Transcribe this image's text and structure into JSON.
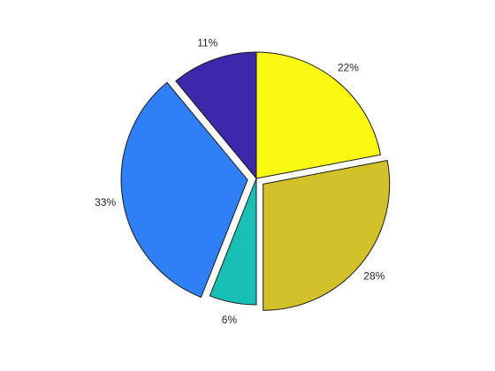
{
  "chart_data": {
    "type": "pie",
    "title": "",
    "start_angle_deg": 90,
    "direction": "clockwise",
    "slices": [
      {
        "label": "22%",
        "value": 22,
        "color": "#f9f911",
        "exploded": false
      },
      {
        "label": "28%",
        "value": 28,
        "color": "#d3c12a",
        "exploded": true
      },
      {
        "label": "6%",
        "value": 6,
        "color": "#18bfb4",
        "exploded": false
      },
      {
        "label": "33%",
        "value": 33,
        "color": "#2f7ff7",
        "exploded": true
      },
      {
        "label": "11%",
        "value": 11,
        "color": "#3d27aa",
        "exploded": false
      }
    ]
  }
}
